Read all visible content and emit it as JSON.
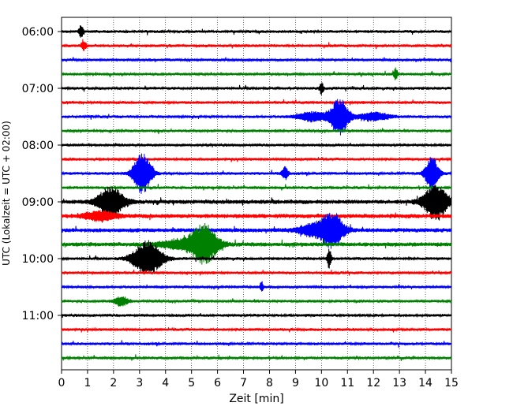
{
  "chart_data": {
    "type": "line",
    "xlabel": "Zeit  [min]",
    "ylabel": "UTC (Lokalzeit = UTC + 02:00)",
    "xlim": [
      0,
      15
    ],
    "x_ticks": [
      0,
      1,
      2,
      3,
      4,
      5,
      6,
      7,
      8,
      9,
      10,
      11,
      12,
      13,
      14,
      15
    ],
    "y_tick_labels": [
      "06:00",
      "07:00",
      "08:00",
      "09:00",
      "10:00",
      "11:00"
    ],
    "y_tick_trace_index": [
      0,
      4,
      8,
      12,
      16,
      20
    ],
    "grid": "vertical dotted",
    "trace_colors": [
      "#000000",
      "#ff0000",
      "#0000ff",
      "#008000"
    ],
    "trace_count": 24,
    "baseline_amplitude": [
      2,
      2,
      2,
      2,
      2,
      2,
      2,
      2,
      2,
      2,
      2,
      2,
      3,
      3,
      3,
      3,
      2,
      2,
      2,
      2,
      2,
      2,
      2,
      2
    ],
    "events": [
      {
        "trace": 0,
        "t": 0.75,
        "amp": 8,
        "dur": 0.08
      },
      {
        "trace": 1,
        "t": 0.85,
        "amp": 6,
        "dur": 0.1
      },
      {
        "trace": 3,
        "t": 12.85,
        "amp": 7,
        "dur": 0.08
      },
      {
        "trace": 4,
        "t": 10.0,
        "amp": 7,
        "dur": 0.08
      },
      {
        "trace": 6,
        "t": 10.7,
        "amp": 22,
        "dur": 0.35
      },
      {
        "trace": 6,
        "t": 9.7,
        "amp": 6,
        "dur": 0.6
      },
      {
        "trace": 6,
        "t": 12.0,
        "amp": 5,
        "dur": 0.6
      },
      {
        "trace": 10,
        "t": 3.1,
        "amp": 26,
        "dur": 0.35
      },
      {
        "trace": 10,
        "t": 8.6,
        "amp": 8,
        "dur": 0.12
      },
      {
        "trace": 10,
        "t": 14.25,
        "amp": 22,
        "dur": 0.25
      },
      {
        "trace": 12,
        "t": 1.9,
        "amp": 18,
        "dur": 0.5
      },
      {
        "trace": 12,
        "t": 14.4,
        "amp": 22,
        "dur": 0.45
      },
      {
        "trace": 13,
        "t": 1.5,
        "amp": 6,
        "dur": 0.6
      },
      {
        "trace": 14,
        "t": 10.4,
        "amp": 22,
        "dur": 0.45
      },
      {
        "trace": 14,
        "t": 9.6,
        "amp": 7,
        "dur": 0.5
      },
      {
        "trace": 15,
        "t": 5.5,
        "amp": 24,
        "dur": 0.5
      },
      {
        "trace": 15,
        "t": 4.6,
        "amp": 6,
        "dur": 0.8
      },
      {
        "trace": 16,
        "t": 3.3,
        "amp": 22,
        "dur": 0.55
      },
      {
        "trace": 16,
        "t": 10.3,
        "amp": 12,
        "dur": 0.08
      },
      {
        "trace": 18,
        "t": 7.7,
        "amp": 7,
        "dur": 0.06
      },
      {
        "trace": 19,
        "t": 2.3,
        "amp": 6,
        "dur": 0.25
      }
    ]
  }
}
